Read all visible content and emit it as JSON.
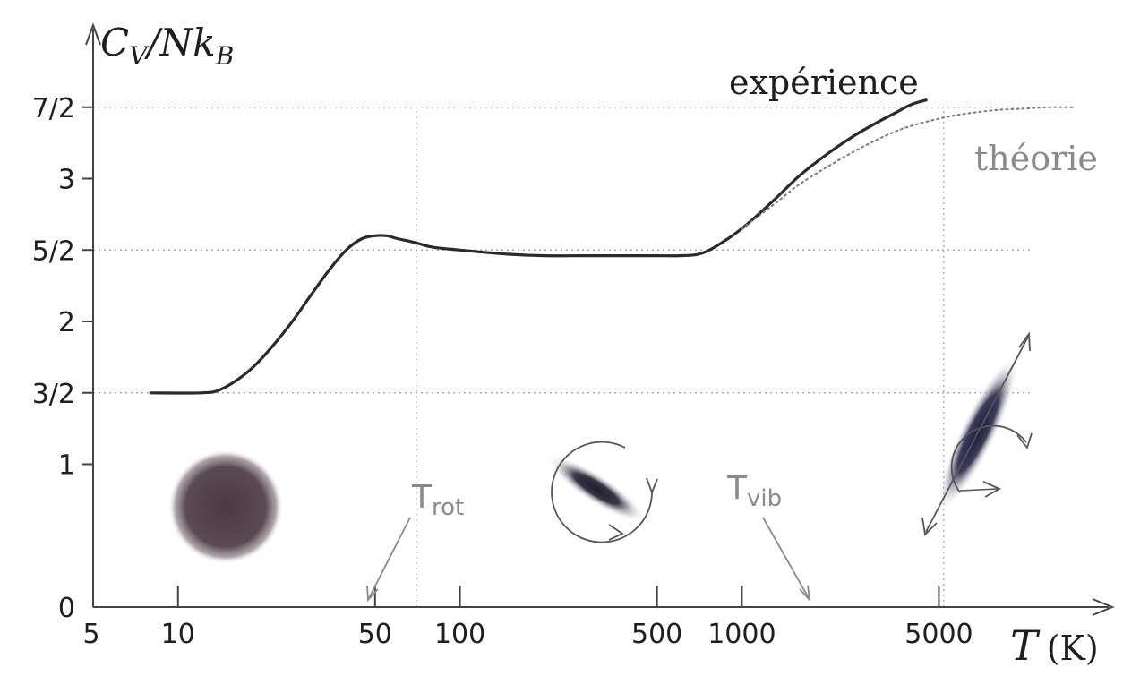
{
  "chart_data": {
    "type": "line",
    "title": "",
    "ylabel": {
      "main": "C",
      "sub1": "V",
      "mid": "/Nk",
      "sub2": "B"
    },
    "xlabel": {
      "var": "T",
      "unit": "(K)"
    },
    "x_scale": "log",
    "xlim": [
      5,
      20000
    ],
    "ylim": [
      0,
      4.0
    ],
    "x_ticks": [
      {
        "value": 5,
        "label": "5"
      },
      {
        "value": 10,
        "label": "10"
      },
      {
        "value": 50,
        "label": "50"
      },
      {
        "value": 100,
        "label": "100"
      },
      {
        "value": 500,
        "label": "500"
      },
      {
        "value": 1000,
        "label": "1000"
      },
      {
        "value": 5000,
        "label": "5000"
      }
    ],
    "y_ticks": [
      {
        "value": 0,
        "label": "0"
      },
      {
        "value": 1,
        "label": "1"
      },
      {
        "value": 1.5,
        "label": "3/2"
      },
      {
        "value": 2,
        "label": "2"
      },
      {
        "value": 2.5,
        "label": "5/2"
      },
      {
        "value": 3,
        "label": "3"
      },
      {
        "value": 3.5,
        "label": "7/2"
      }
    ],
    "h_ref_lines": [
      1.5,
      2.5,
      3.5
    ],
    "v_ref_lines": [
      70,
      5200
    ],
    "series": [
      {
        "name": "expérience",
        "style": "solid",
        "color": "#2a2a2a",
        "x": [
          8,
          12,
          14,
          17,
          20,
          25,
          30,
          35,
          40,
          45,
          50,
          55,
          60,
          70,
          80,
          100,
          150,
          200,
          300,
          400,
          500,
          600,
          700,
          800,
          1000,
          1300,
          1600,
          2000,
          2500,
          3000,
          3500,
          4000,
          4500
        ],
        "y": [
          1.5,
          1.5,
          1.52,
          1.62,
          1.75,
          1.98,
          2.2,
          2.38,
          2.51,
          2.58,
          2.6,
          2.6,
          2.58,
          2.55,
          2.52,
          2.5,
          2.47,
          2.46,
          2.46,
          2.46,
          2.46,
          2.46,
          2.47,
          2.52,
          2.65,
          2.85,
          3.02,
          3.17,
          3.3,
          3.39,
          3.46,
          3.52,
          3.55
        ]
      },
      {
        "name": "théorie",
        "style": "dotted",
        "color": "#7a7a7a",
        "x": [
          1000,
          1300,
          1600,
          2000,
          2500,
          3000,
          3500,
          4000,
          5000,
          6000,
          8000,
          10000,
          12000,
          15000
        ],
        "y": [
          2.65,
          2.82,
          2.96,
          3.08,
          3.19,
          3.27,
          3.33,
          3.37,
          3.42,
          3.45,
          3.48,
          3.49,
          3.5,
          3.5
        ]
      }
    ],
    "annotations": [
      {
        "text": "T",
        "sub": "rot",
        "x": 70
      },
      {
        "text": "T",
        "sub": "vib",
        "x": 5200
      }
    ]
  }
}
